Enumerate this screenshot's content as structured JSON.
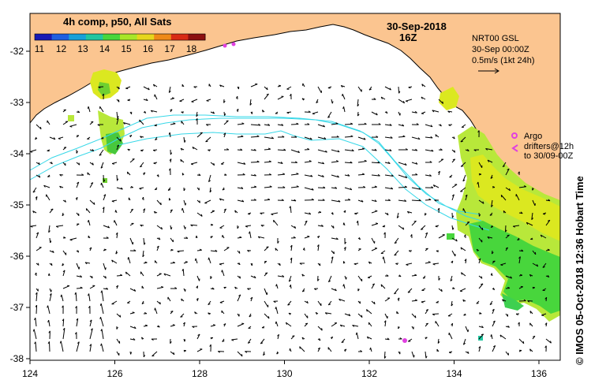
{
  "legend": {
    "title": "4h comp, p50, All Sats",
    "ticks": [
      "11",
      "12",
      "13",
      "14",
      "15",
      "16",
      "17",
      "18"
    ],
    "colors": [
      "#1a1ab4",
      "#1f5fe0",
      "#19a0d8",
      "#22c6a0",
      "#48d63c",
      "#a8e628",
      "#e6d61c",
      "#ee8a18",
      "#d82a14",
      "#8c1010"
    ]
  },
  "header": {
    "date": "30-Sep-2018",
    "hour": "16Z"
  },
  "nrt": {
    "line1": "NRT00 GSL",
    "line2": "30-Sep 00:00Z",
    "scale": "0.5m/s (1kt 24h)"
  },
  "argo": {
    "label": "Argo",
    "drifters": "drifters@12h",
    "to": "to 30/09-00Z"
  },
  "side_label": "© IMOS 05-Oct-2018 12:36 Hobart Time",
  "axes": {
    "x_ticks": [
      "124",
      "126",
      "128",
      "130",
      "132",
      "134",
      "136"
    ],
    "y_ticks": [
      "-32",
      "-33",
      "-34",
      "-35",
      "-36",
      "-37",
      "-38"
    ]
  },
  "colors": {
    "land": "#fbc590",
    "contour": "#38d8e8",
    "argo": "#e040e0",
    "sst_green": "#6fd030",
    "sst_yellow": "#dbe820",
    "sst_lightgreen": "#b8e83a"
  }
}
